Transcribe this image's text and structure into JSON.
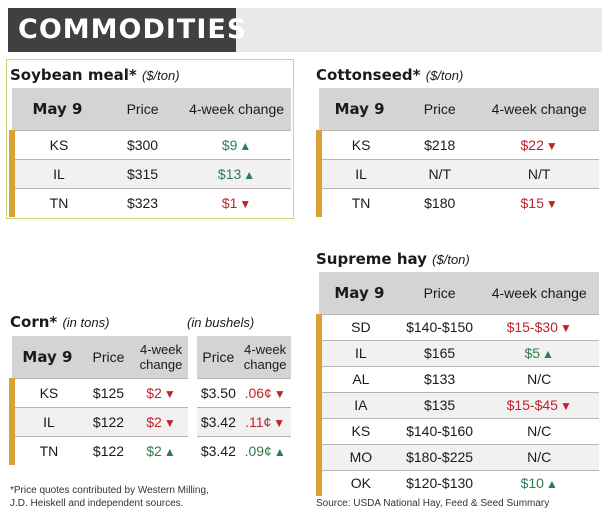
{
  "banner": {
    "title": "COMMODITIES"
  },
  "soybean": {
    "title": "Soybean meal*",
    "unit": "($/ton)",
    "headers": [
      "May 9",
      "Price",
      "4-week change"
    ],
    "rows": [
      {
        "state": "KS",
        "price": "$300",
        "change": "$9",
        "dir": "up"
      },
      {
        "state": "IL",
        "price": "$315",
        "change": "$13",
        "dir": "up"
      },
      {
        "state": "TN",
        "price": "$323",
        "change": "$1",
        "dir": "down"
      }
    ]
  },
  "cottonseed": {
    "title": "Cottonseed*",
    "unit": "($/ton)",
    "headers": [
      "May 9",
      "Price",
      "4-week change"
    ],
    "rows": [
      {
        "state": "KS",
        "price": "$218",
        "change": "$22",
        "dir": "down"
      },
      {
        "state": "IL",
        "price": "N/T",
        "change": "N/T",
        "dir": "flat"
      },
      {
        "state": "TN",
        "price": "$180",
        "change": "$15",
        "dir": "down"
      }
    ]
  },
  "corn": {
    "title": "Corn*",
    "unit": "(in tons)",
    "unit2": "(in bushels)",
    "headers": [
      "May 9",
      "Price",
      "4-week change",
      "Price",
      "4-week change"
    ],
    "rows": [
      {
        "state": "KS",
        "price": "$125",
        "change": "$2",
        "dir": "down",
        "bprice": "$3.50",
        "bchange": ".06¢",
        "bdir": "down"
      },
      {
        "state": "IL",
        "price": "$122",
        "change": "$2",
        "dir": "down",
        "bprice": "$3.42",
        "bchange": ".11¢",
        "bdir": "down"
      },
      {
        "state": "TN",
        "price": "$122",
        "change": "$2",
        "dir": "up",
        "bprice": "$3.42",
        "bchange": ".09¢",
        "bdir": "up"
      }
    ]
  },
  "hay": {
    "title": "Supreme hay",
    "unit": "($/ton)",
    "headers": [
      "May 9",
      "Price",
      "4-week change"
    ],
    "rows": [
      {
        "state": "SD",
        "price": "$140-$150",
        "change": "$15-$30",
        "dir": "down"
      },
      {
        "state": "IL",
        "price": "$165",
        "change": "$5",
        "dir": "up"
      },
      {
        "state": "AL",
        "price": "$133",
        "change": "N/C",
        "dir": "flat"
      },
      {
        "state": "IA",
        "price": "$135",
        "change": "$15-$45",
        "dir": "down"
      },
      {
        "state": "KS",
        "price": "$140-$160",
        "change": "N/C",
        "dir": "flat"
      },
      {
        "state": "MO",
        "price": "$180-$225",
        "change": "N/C",
        "dir": "flat"
      },
      {
        "state": "OK",
        "price": "$120-$130",
        "change": "$10",
        "dir": "up"
      }
    ]
  },
  "footnotes": {
    "left_line1": "*Price quotes contributed by Western Milling,",
    "left_line2": "J.D. Heiskell and independent sources.",
    "right": "Source: USDA National Hay, Feed & Seed Summary"
  },
  "icons": {
    "up": "triangle-up-icon",
    "down": "triangle-down-icon"
  },
  "colors": {
    "up": "#2e7d4f",
    "down": "#c0222e",
    "accent": "#d9a232",
    "banner": "#404040"
  }
}
